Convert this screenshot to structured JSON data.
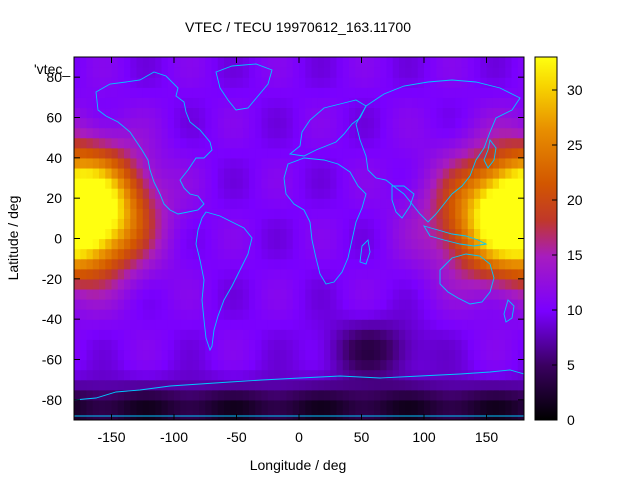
{
  "chart_data": {
    "type": "heatmap",
    "title": "VTEC / TECU 19970612_163.11700",
    "xlabel": "Longitude / deg",
    "ylabel": "Latitude / deg",
    "series_key": "'vtec_",
    "xlim": [
      -180,
      180
    ],
    "ylim": [
      -90,
      90
    ],
    "x_ticks": [
      -150,
      -100,
      -50,
      0,
      50,
      100,
      150
    ],
    "y_ticks": [
      -80,
      -60,
      -40,
      -20,
      0,
      20,
      40,
      60,
      80
    ],
    "colorbar": {
      "range": [
        0,
        33
      ],
      "ticks": [
        0,
        5,
        10,
        15,
        20,
        25,
        30
      ],
      "palette": "gnuplot-default"
    },
    "features": [
      {
        "name": "pacific-peak",
        "lon": -170,
        "lat": 15,
        "value": 30
      },
      {
        "name": "asia-peak",
        "lon": 165,
        "lat": 10,
        "value": 28
      },
      {
        "name": "southern-low",
        "lon": 60,
        "lat": -55,
        "value": 3
      },
      {
        "name": "antarctic-low",
        "lon": 130,
        "lat": -85,
        "value": 1
      },
      {
        "name": "background",
        "value": 10
      }
    ],
    "overlay": "coastlines"
  }
}
